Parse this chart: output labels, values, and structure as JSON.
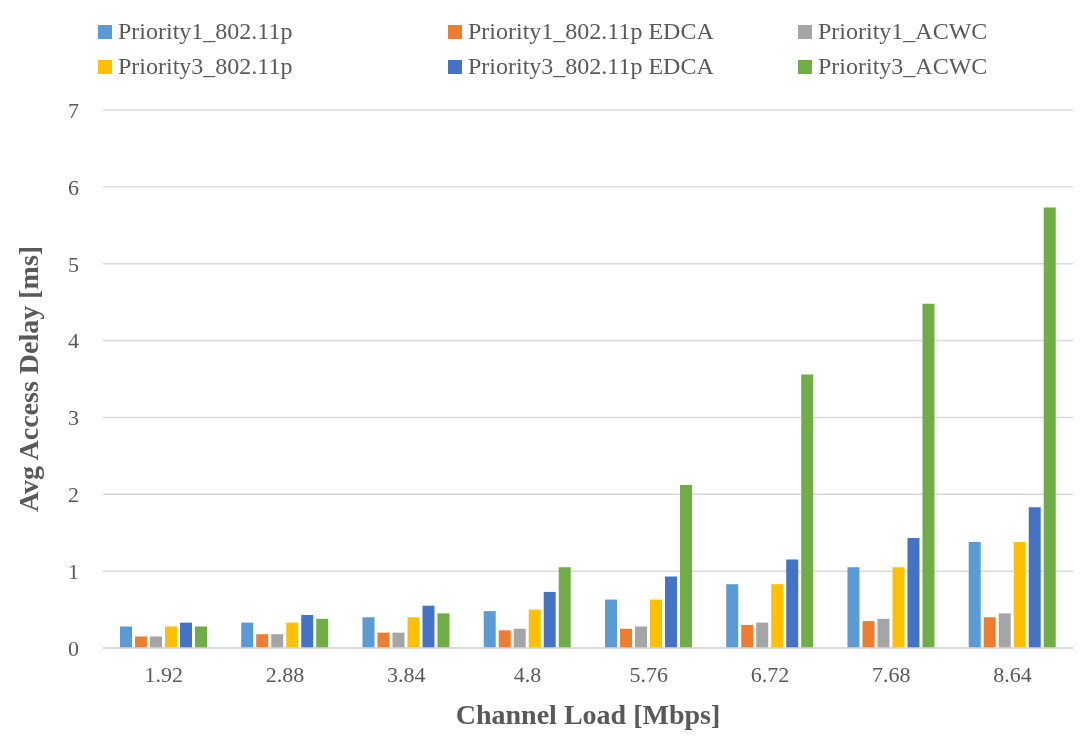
{
  "chart_data": {
    "type": "bar",
    "xlabel": "Channel Load [Mbps]",
    "ylabel": "Avg Access Delay [ms]",
    "categories": [
      "1.92",
      "2.88",
      "3.84",
      "4.8",
      "5.76",
      "6.72",
      "7.68",
      "8.64"
    ],
    "ylim": [
      0,
      7
    ],
    "yticks": [
      0,
      1,
      2,
      3,
      4,
      5,
      6,
      7
    ],
    "grid": "y",
    "legend": "top",
    "series": [
      {
        "name": "Priority1_802.11p",
        "color": "#5b9bd5",
        "values": [
          0.28,
          0.33,
          0.4,
          0.48,
          0.63,
          0.83,
          1.05,
          1.38
        ]
      },
      {
        "name": "Priority1_802.11p EDCA",
        "color": "#ed7d31",
        "values": [
          0.15,
          0.18,
          0.2,
          0.23,
          0.25,
          0.3,
          0.35,
          0.4
        ]
      },
      {
        "name": "Priority1_ACWC",
        "color": "#a5a5a5",
        "values": [
          0.15,
          0.18,
          0.2,
          0.25,
          0.28,
          0.33,
          0.38,
          0.45
        ]
      },
      {
        "name": "Priority3_802.11p",
        "color": "#ffc000",
        "values": [
          0.28,
          0.33,
          0.4,
          0.5,
          0.63,
          0.83,
          1.05,
          1.38
        ]
      },
      {
        "name": "Priority3_802.11p EDCA",
        "color": "#4472c4",
        "values": [
          0.33,
          0.43,
          0.55,
          0.73,
          0.93,
          1.15,
          1.43,
          1.83
        ]
      },
      {
        "name": "Priority3_ACWC",
        "color": "#70ad47",
        "values": [
          0.28,
          0.38,
          0.45,
          1.05,
          2.12,
          3.56,
          4.48,
          5.73
        ]
      }
    ]
  }
}
